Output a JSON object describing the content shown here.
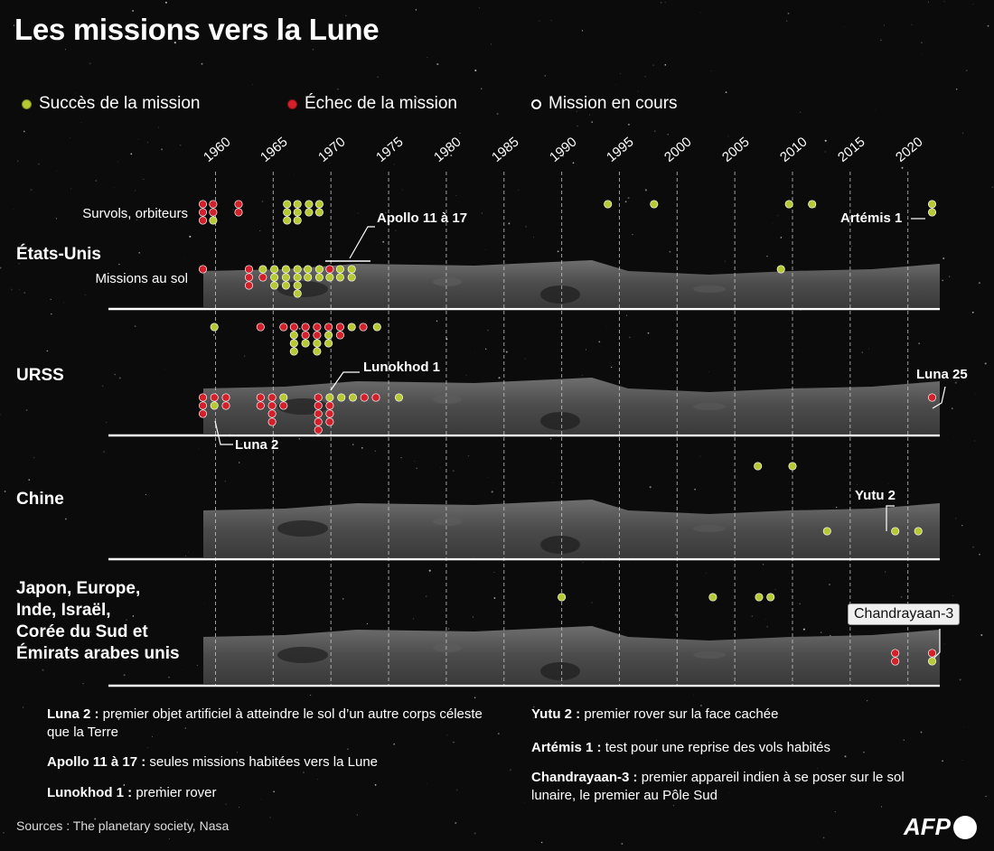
{
  "title": "Les missions vers la Lune",
  "legend": [
    {
      "label": "Succès de la mission",
      "status": "success"
    },
    {
      "label": "Échec de la mission",
      "status": "failure"
    },
    {
      "label": "Mission en cours",
      "status": "ongoing"
    }
  ],
  "colors": {
    "success": "#b6c832",
    "failure": "#d4202a",
    "ongoing": "#0b0b0b",
    "background": "#0b0b0b",
    "grid": "#cfcfcf"
  },
  "regions": {
    "us": "États-Unis",
    "ussr": "URSS",
    "china": "Chine",
    "others": "Japon, Europe,\nInde, Israël,\nCorée du Sud et\nÉmirats arabes unis"
  },
  "sublabels": {
    "orbit": "Survols, orbiteurs",
    "ground": "Missions au sol"
  },
  "callouts": {
    "apollo": "Apollo 11 à 17",
    "artemis": "Artémis 1",
    "lunokhod": "Lunokhod 1",
    "luna2": "Luna 2",
    "luna25": "Luna 25",
    "yutu2": "Yutu 2",
    "chandrayaan": "Chandrayaan-3"
  },
  "notes": [
    {
      "key": "Luna 2 :",
      "text": " premier objet artificiel à atteindre le sol d’un autre corps céleste que la Terre"
    },
    {
      "key": "Apollo 11 à 17 :",
      "text": " seules missions habitées vers la Lune"
    },
    {
      "key": "Lunokhod 1 :",
      "text": " premier rover"
    },
    {
      "key": "Yutu 2 :",
      "text": " premier rover sur la face cachée"
    },
    {
      "key": "Artémis 1 :",
      "text": " test pour une reprise des vols habités"
    },
    {
      "key": "Chandrayaan-3 :",
      "text": " premier appareil indien à se poser sur le sol lunaire, le premier au Pôle Sud"
    }
  ],
  "sources": "Sources : The planetary society, Nasa",
  "logo_text": "AFP",
  "chart_data": {
    "type": "scatter",
    "title": "Les missions vers la Lune",
    "x_axis": {
      "label": "",
      "ticks": [
        1960,
        1965,
        1970,
        1975,
        1980,
        1985,
        1990,
        1995,
        2000,
        2005,
        2010,
        2015,
        2020
      ],
      "range": [
        1958,
        2023
      ]
    },
    "legend": "top-left",
    "grid": "vertical dashed",
    "series": [
      {
        "region": "États-Unis",
        "track": "Survols, orbiteurs",
        "points": [
          {
            "x": 1958.9,
            "stack": [
              1,
              1,
              1
            ]
          },
          {
            "x": 1959.8,
            "stack": [
              1,
              1,
              0
            ]
          },
          {
            "x": 1962,
            "stack": [
              1,
              1
            ]
          },
          {
            "x": 1966.2,
            "stack": [
              0,
              0,
              0
            ]
          },
          {
            "x": 1967.1,
            "stack": [
              0,
              0,
              0
            ]
          },
          {
            "x": 1968.1,
            "stack": [
              0,
              0
            ]
          },
          {
            "x": 1969,
            "stack": [
              0,
              0
            ]
          },
          {
            "x": 1994,
            "stack": [
              0
            ]
          },
          {
            "x": 1998,
            "stack": [
              0
            ]
          },
          {
            "x": 2009.7,
            "stack": [
              0
            ]
          },
          {
            "x": 2011.7,
            "stack": [
              0
            ]
          },
          {
            "x": 2022.1,
            "stack": [
              0,
              0
            ]
          }
        ]
      },
      {
        "region": "États-Unis",
        "track": "Missions au sol",
        "points": [
          {
            "x": 1958.9,
            "stack": [
              1
            ]
          },
          {
            "x": 1962.9,
            "stack": [
              1,
              1,
              1
            ]
          },
          {
            "x": 1964.1,
            "stack": [
              0,
              1
            ]
          },
          {
            "x": 1965.1,
            "stack": [
              0,
              0,
              0
            ]
          },
          {
            "x": 1966.1,
            "stack": [
              0,
              0,
              0
            ]
          },
          {
            "x": 1967.1,
            "stack": [
              0,
              0,
              0,
              0
            ]
          },
          {
            "x": 1968,
            "stack": [
              0,
              0
            ]
          },
          {
            "x": 1969,
            "stack": [
              0,
              0
            ]
          },
          {
            "x": 1969.9,
            "stack": [
              1,
              0
            ]
          },
          {
            "x": 1970.8,
            "stack": [
              0,
              0
            ]
          },
          {
            "x": 1971.8,
            "stack": [
              0,
              0
            ]
          },
          {
            "x": 2009,
            "stack": [
              0
            ]
          }
        ]
      },
      {
        "region": "URSS",
        "track": "Survols, orbiteurs",
        "points": [
          {
            "x": 1959.9,
            "stack": [
              0
            ]
          },
          {
            "x": 1963.9,
            "stack": [
              1
            ]
          },
          {
            "x": 1965.9,
            "stack": [
              1
            ]
          },
          {
            "x": 1966.8,
            "stack": [
              1,
              0,
              0,
              0
            ]
          },
          {
            "x": 1967.8,
            "stack": [
              1,
              1,
              0
            ]
          },
          {
            "x": 1968.8,
            "stack": [
              1,
              1,
              0,
              0
            ]
          },
          {
            "x": 1969.8,
            "stack": [
              1,
              0,
              0
            ]
          },
          {
            "x": 1970.8,
            "stack": [
              1,
              1
            ]
          },
          {
            "x": 1971.8,
            "stack": [
              0
            ]
          },
          {
            "x": 1972.8,
            "stack": [
              1
            ]
          },
          {
            "x": 1974,
            "stack": [
              0
            ]
          }
        ]
      },
      {
        "region": "URSS",
        "track": "Missions au sol",
        "points": [
          {
            "x": 1958.9,
            "stack": [
              1,
              1,
              1
            ]
          },
          {
            "x": 1959.9,
            "stack": [
              1,
              0
            ]
          },
          {
            "x": 1960.9,
            "stack": [
              1,
              1
            ]
          },
          {
            "x": 1963.9,
            "stack": [
              1,
              1
            ]
          },
          {
            "x": 1964.9,
            "stack": [
              1,
              1,
              1,
              1
            ]
          },
          {
            "x": 1965.9,
            "stack": [
              0,
              1
            ]
          },
          {
            "x": 1968.9,
            "stack": [
              1,
              1,
              1,
              1,
              1
            ]
          },
          {
            "x": 1969.9,
            "stack": [
              0,
              1,
              1,
              1
            ]
          },
          {
            "x": 1970.9,
            "stack": [
              0
            ]
          },
          {
            "x": 1971.9,
            "stack": [
              0
            ]
          },
          {
            "x": 1972.9,
            "stack": [
              1
            ]
          },
          {
            "x": 1973.9,
            "stack": [
              1
            ]
          },
          {
            "x": 1975.9,
            "stack": [
              0
            ]
          },
          {
            "x": 2022.1,
            "stack": [
              1
            ]
          }
        ]
      },
      {
        "region": "Chine",
        "track": "Survols, orbiteurs",
        "points": [
          {
            "x": 2007,
            "stack": [
              0
            ]
          },
          {
            "x": 2010,
            "stack": [
              0
            ]
          }
        ]
      },
      {
        "region": "Chine",
        "track": "Missions au sol",
        "points": [
          {
            "x": 2013,
            "stack": [
              0
            ]
          },
          {
            "x": 2018.9,
            "stack": [
              0
            ]
          },
          {
            "x": 2020.9,
            "stack": [
              0
            ]
          }
        ]
      },
      {
        "region": "Japon, Europe, Inde, Israël, Corée du Sud et Émirats arabes unis",
        "track": "Survols, orbiteurs",
        "points": [
          {
            "x": 1990,
            "stack": [
              0
            ]
          },
          {
            "x": 2003.1,
            "stack": [
              0
            ]
          },
          {
            "x": 2007.1,
            "stack": [
              0
            ]
          },
          {
            "x": 2008.1,
            "stack": [
              0
            ]
          }
        ]
      },
      {
        "region": "Japon, Europe, Inde, Israël, Corée du Sud et Émirats arabes unis",
        "track": "Missions au sol",
        "points": [
          {
            "x": 2018.9,
            "stack": [
              1,
              1
            ]
          },
          {
            "x": 2022.1,
            "stack": [
              1,
              0
            ]
          }
        ]
      }
    ],
    "status_codes": {
      "0": "Succès de la mission",
      "1": "Échec de la mission"
    }
  }
}
